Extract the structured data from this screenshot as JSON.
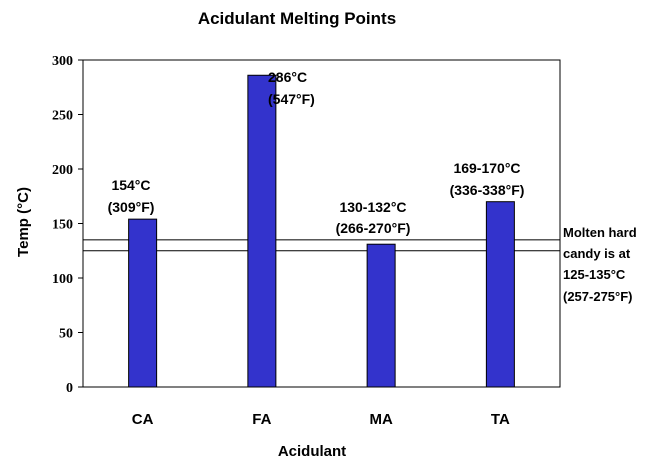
{
  "chart_data": {
    "type": "bar",
    "title": "Acidulant Melting Points",
    "xlabel": "Acidulant",
    "ylabel": "Temp (°C)",
    "ylim": [
      0,
      300
    ],
    "yticks": [
      0,
      50,
      100,
      150,
      200,
      250,
      300
    ],
    "categories": [
      "CA",
      "FA",
      "MA",
      "TA"
    ],
    "values": [
      154,
      286,
      131,
      170
    ],
    "bar_color": "#3333cc",
    "grid": false,
    "data_labels": [
      {
        "category": "CA",
        "line1": "154°C",
        "line2": "(309°F)"
      },
      {
        "category": "FA",
        "line1": "286°C",
        "line2": "(547°F)"
      },
      {
        "category": "MA",
        "line1": "130-132°C",
        "line2": "(266-270°F)"
      },
      {
        "category": "TA",
        "line1": "169-170°C",
        "line2": "(336-338°F)"
      }
    ],
    "band": {
      "range": [
        125,
        135
      ],
      "label_lines": [
        "Molten hard",
        "candy is at",
        "125-135°C",
        "(257-275°F)"
      ]
    }
  }
}
